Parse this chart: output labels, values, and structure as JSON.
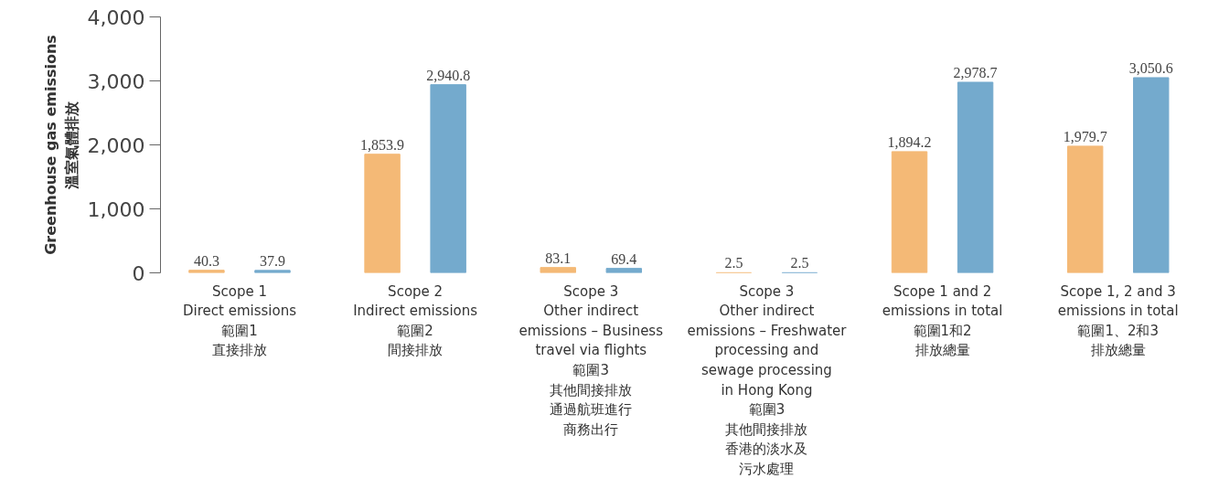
{
  "chart_data": {
    "type": "bar",
    "categories": [
      "Scope 1\nDirect emissions\n範圍1\n直接排放",
      "Scope 2\nIndirect emissions\n範圍2\n間接排放",
      "Scope 3\nOther indirect\nemissions – Business\ntravel via flights\n範圍3\n其他間接排放通過航班進行商務出行",
      "Scope 3\nOther indirect\nemissions – Freshwater\nprocessing and\nsewage processing\nin Hong Kong\n範圍3\n其他間接排放香港的淡水及污水處理",
      "Scope 1 and 2\nemissions in total\n範圍1和2\n排放總量",
      "Scope 1, 2 and 3\nemissions in total\n範圍1、2和3\n排放總量"
    ],
    "ylabel": "Greenhouse gas emissions\n溫室氣體排放",
    "series": [
      {
        "color": "#f4b976",
        "values": [
          40.3,
          1853.9,
          83.1,
          2.5,
          1894.2,
          1979.7
        ],
        "value_labels": [
          "40.3",
          "1,853.9",
          "83.1",
          "2.5",
          "1,894.2",
          "1,979.7"
        ]
      },
      {
        "color": "#74aacd",
        "values": [
          37.9,
          2940.8,
          69.4,
          2.5,
          2978.7,
          3050.6
        ],
        "value_labels": [
          "37.9",
          "2,940.8",
          "69.4",
          "2.5",
          "2,978.7",
          "3,050.6"
        ]
      }
    ],
    "ylim": [
      0,
      4000
    ],
    "yticks": [
      {
        "value": 0,
        "label": "0"
      },
      {
        "value": 1000,
        "label": "1,000"
      },
      {
        "value": 2000,
        "label": "2,000"
      },
      {
        "value": 3000,
        "label": "3,000"
      },
      {
        "value": 4000,
        "label": "4,000"
      }
    ],
    "grid": false
  }
}
